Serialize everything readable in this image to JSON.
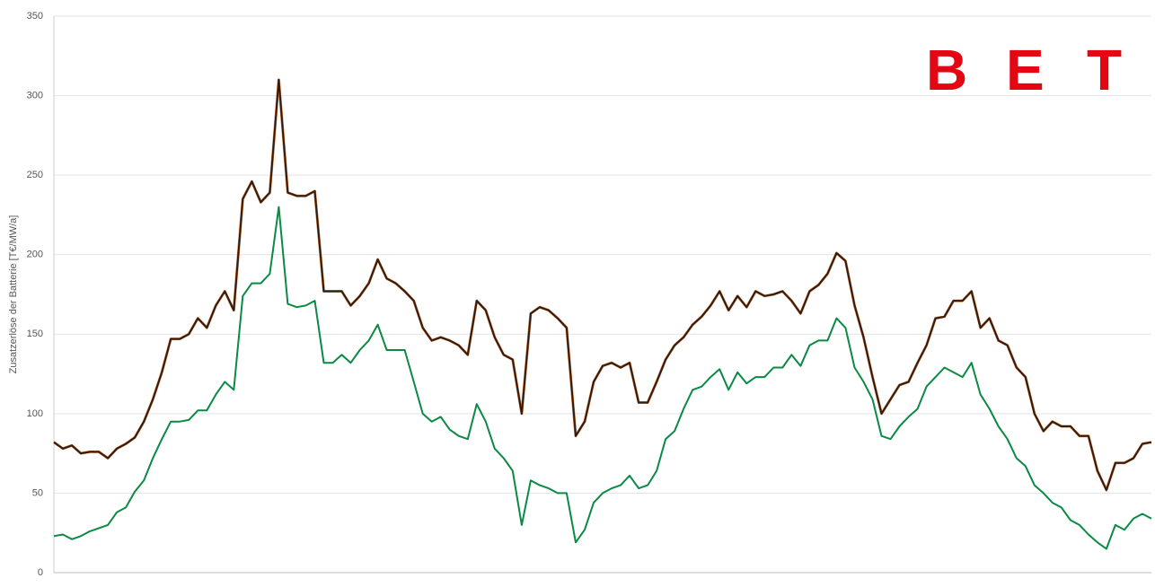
{
  "chart_data": {
    "type": "line",
    "y_label": "Zusatzerlöse der Batterie [T€/MW/a]",
    "categories": [
      null,
      null,
      null,
      null,
      null,
      null,
      null,
      null,
      null,
      null,
      null,
      null,
      null,
      null,
      null,
      null,
      null,
      null,
      null,
      null,
      null,
      null,
      null,
      null,
      null,
      null,
      null,
      null,
      null,
      null,
      null,
      null,
      null,
      null,
      null,
      null,
      null,
      null,
      null,
      null,
      null,
      null,
      null,
      null,
      null,
      null,
      null,
      null,
      null,
      null,
      null,
      null,
      null,
      null,
      null,
      null,
      null,
      null,
      null,
      null,
      null,
      null,
      null,
      null,
      null,
      null,
      null,
      null,
      null,
      null,
      null,
      null,
      null,
      null,
      null,
      null,
      null,
      null,
      null,
      null,
      null,
      null,
      null,
      null,
      null,
      null,
      null,
      null,
      null,
      null,
      null,
      null,
      null,
      null,
      null,
      null,
      null,
      null,
      null,
      null,
      null,
      null,
      null,
      null,
      null,
      null,
      null,
      null,
      null,
      null,
      null,
      null,
      null,
      null,
      null,
      null,
      null,
      null,
      null,
      null,
      null,
      null,
      null
    ],
    "series": [
      {
        "color": "#e07b39",
        "values": [
          82,
          78,
          80,
          75,
          76,
          76,
          72,
          78,
          81,
          85,
          95,
          109,
          126,
          147,
          147,
          150,
          160,
          154,
          168,
          177,
          165,
          235,
          246,
          233,
          239,
          310,
          239,
          237,
          237,
          240,
          177,
          177,
          177,
          168,
          174,
          182,
          197,
          185,
          182,
          177,
          171,
          154,
          146,
          148,
          146,
          143,
          137,
          171,
          165,
          148,
          137,
          134,
          100,
          163,
          167,
          165,
          160,
          154,
          86,
          95,
          120,
          130,
          132,
          129,
          132,
          107,
          107,
          120,
          134,
          143,
          148,
          156,
          161,
          168,
          177,
          165,
          174,
          167,
          177,
          174,
          175,
          177,
          171,
          163,
          177,
          181,
          188,
          201,
          196,
          168,
          148,
          123,
          100,
          109,
          118,
          120,
          132,
          143,
          160,
          161,
          171,
          171,
          177,
          154,
          160,
          146,
          143,
          129,
          123,
          100,
          89,
          95,
          92,
          92,
          86,
          86,
          64,
          52,
          69,
          69,
          72,
          81,
          82
        ]
      },
      {
        "color": "#2b1d17",
        "values": [
          82,
          78,
          80,
          75,
          76,
          76,
          72,
          78,
          81,
          85,
          95,
          109,
          126,
          147,
          147,
          150,
          160,
          154,
          168,
          177,
          165,
          235,
          246,
          233,
          239,
          310,
          239,
          237,
          237,
          240,
          177,
          177,
          177,
          168,
          174,
          182,
          197,
          185,
          182,
          177,
          171,
          154,
          146,
          148,
          146,
          143,
          137,
          171,
          165,
          148,
          137,
          134,
          100,
          163,
          167,
          165,
          160,
          154,
          86,
          95,
          120,
          130,
          132,
          129,
          132,
          107,
          107,
          120,
          134,
          143,
          148,
          156,
          161,
          168,
          177,
          165,
          174,
          167,
          177,
          174,
          175,
          177,
          171,
          163,
          177,
          181,
          188,
          201,
          196,
          168,
          148,
          123,
          100,
          109,
          118,
          120,
          132,
          143,
          160,
          161,
          171,
          171,
          177,
          154,
          160,
          146,
          143,
          129,
          123,
          100,
          89,
          95,
          92,
          92,
          86,
          86,
          64,
          52,
          69,
          69,
          72,
          81,
          82
        ]
      },
      {
        "color": "#0a8a44",
        "values": [
          23,
          24,
          21,
          23,
          26,
          28,
          30,
          38,
          41,
          51,
          58,
          72,
          84,
          95,
          95,
          96,
          102,
          102,
          112,
          120,
          115,
          174,
          182,
          182,
          188,
          230,
          169,
          167,
          168,
          171,
          132,
          132,
          137,
          132,
          140,
          146,
          156,
          140,
          140,
          140,
          120,
          100,
          95,
          98,
          90,
          86,
          84,
          106,
          95,
          78,
          72,
          64,
          30,
          58,
          55,
          53,
          50,
          50,
          19,
          27,
          44,
          50,
          53,
          55,
          61,
          53,
          55,
          64,
          84,
          89,
          103,
          115,
          117,
          123,
          128,
          115,
          126,
          119,
          123,
          123,
          129,
          129,
          137,
          130,
          143,
          146,
          146,
          160,
          154,
          129,
          120,
          109,
          86,
          84,
          92,
          98,
          103,
          117,
          123,
          129,
          126,
          123,
          132,
          112,
          103,
          92,
          84,
          72,
          67,
          55,
          50,
          44,
          41,
          33,
          30,
          24,
          19,
          15,
          30,
          27,
          34,
          37,
          34
        ]
      }
    ],
    "ylim": [
      0,
      350
    ],
    "yticks": [
      0,
      50,
      100,
      150,
      200,
      250,
      300,
      350
    ],
    "grid": true
  },
  "logo": [
    "B",
    "E",
    "T"
  ]
}
